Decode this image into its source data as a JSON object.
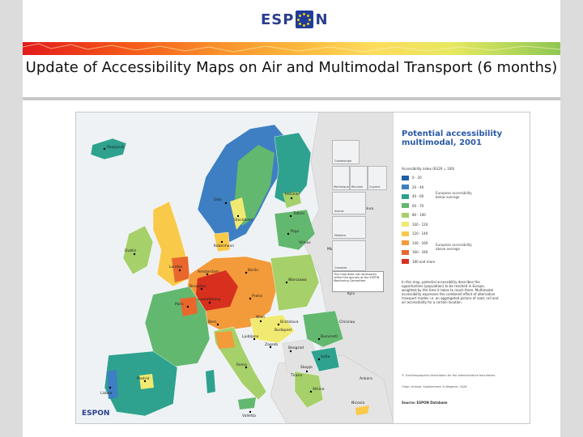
{
  "header": {
    "logo_text": "ESP",
    "logo_suffix": "N",
    "title": "Update of Accessibility Maps on Air and Multimodal Transport (6 months)",
    "banner_colors": [
      "#e31a1c",
      "#f55a1a",
      "#f98c2a",
      "#fbb53a",
      "#fddc5c",
      "#e6e860",
      "#b9d95a",
      "#8fc653"
    ]
  },
  "map": {
    "legend": {
      "title_line1": "Potential accessibility",
      "title_line2": "multimodal, 2001",
      "subtitle": "Accessibility index (EU29 = 100)",
      "classes": [
        {
          "label": "0 - 20",
          "color": "#1f5fa8"
        },
        {
          "label": "20 - 40",
          "color": "#3d7fc2"
        },
        {
          "label": "40 - 60",
          "color": "#2ea28e"
        },
        {
          "label": "60 - 70",
          "color": "#63b86f"
        },
        {
          "label": "80 - 100",
          "color": "#a6d06a"
        },
        {
          "label": "100 - 120",
          "color": "#f1ea72"
        },
        {
          "label": "120 - 140",
          "color": "#f9c94a"
        },
        {
          "label": "140 - 160",
          "color": "#f39a3a"
        },
        {
          "label": "160 - 180",
          "color": "#e9672c"
        },
        {
          "label": "180 and more",
          "color": "#d7301f"
        }
      ],
      "note_below": "European accessibility below average",
      "note_above": "European accessibility above average",
      "paragraph": "In this map, potential accessibility describes the opportunities (population) to be reached in Europe, weighted by the time it takes to reach them. Multimodal accessibility expresses the combined effect of alternative transport modes i.e. an aggregated picture of road, rail and air accessibility for a certain location.",
      "copyright": "© EuroGeographics Association for the administrative boundaries",
      "origin": "Origin of data: Spiekermann & Wegener, S&W",
      "source": "Source: ESPON Database"
    },
    "disclaimer": "This map does not necessarily reflect the opinion of the ESPON Monitoring Committee",
    "footer_logo": "ESPON",
    "city_labels": [
      "Reykjavik",
      "Helsinki",
      "Oslo",
      "Stockholm",
      "Tallinn",
      "Riga",
      "Vilnius",
      "Kobenhavn",
      "Dublin",
      "London",
      "Amsterdam",
      "Berlin",
      "Warszawa",
      "Bruxelles",
      "Luxembourg",
      "Praha",
      "Paris",
      "Wien",
      "Bratislava",
      "Budapest",
      "Bern",
      "Ljubljana",
      "Zagreb",
      "Beograd",
      "Bucuresti",
      "Sofia",
      "Skopje",
      "Tirana",
      "Roma",
      "Madrid",
      "Lisboa",
      "Athina",
      "Valletta",
      "Nicosia",
      "Minsk",
      "Kyiv",
      "Chisinau",
      "Ankara",
      "Moskva"
    ],
    "inset_labels": [
      "Guadeloupe",
      "Martinique",
      "Reunion",
      "Guyane",
      "Acores",
      "Madeira",
      "Canarias"
    ]
  }
}
